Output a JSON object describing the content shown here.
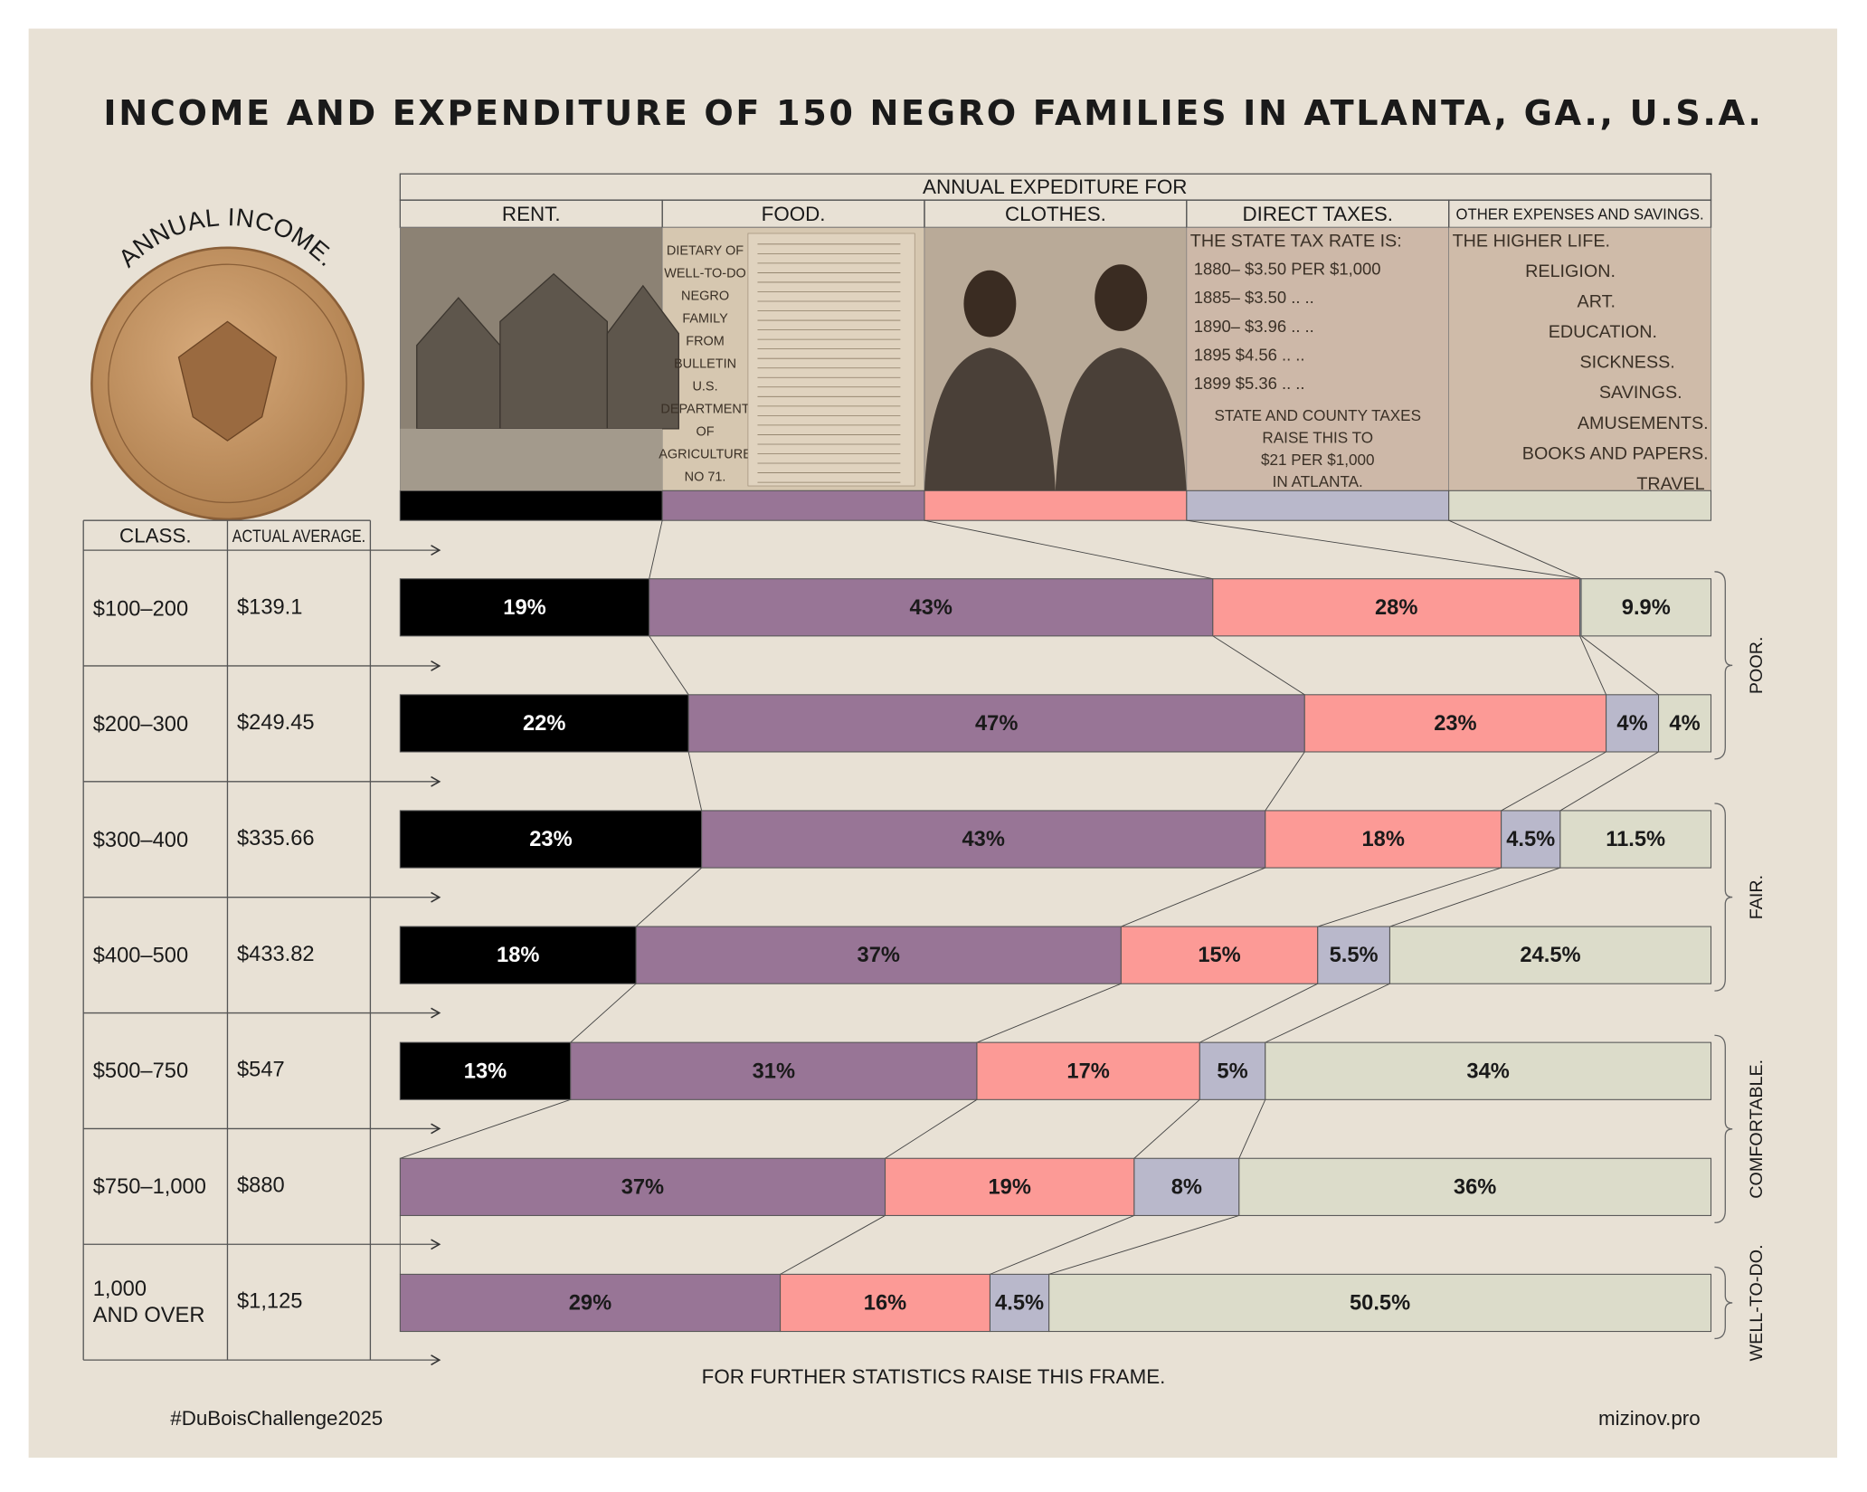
{
  "chart_data": {
    "type": "stacked-bar",
    "title": "INCOME AND EXPENDITURE OF 150 NEGRO FAMILIES IN ATLANTA, GA., U.S.A.",
    "income_label": "ANNUAL INCOME.",
    "expenditure_label": "ANNUAL EXPEDITURE FOR",
    "table_headers": [
      "CLASS.",
      "ACTUAL AVERAGE."
    ],
    "categories": [
      "$100–200",
      "$200–300",
      "$300–400",
      "$400–500",
      "$500–750",
      "$750–1,000",
      "1,000\nAND OVER"
    ],
    "actual_average": [
      "$139.1",
      "$249.45",
      "$335.66",
      "$433.82",
      "$547",
      "$880",
      "$1,125"
    ],
    "groups": [
      "POOR.",
      "POOR.",
      "FAIR.",
      "FAIR.",
      "COMFORTABLE.",
      "COMFORTABLE.",
      "WELL-TO-DO."
    ],
    "xlim": [
      0,
      100
    ],
    "series": [
      {
        "name": "RENT.",
        "color": "#000000",
        "values": [
          19,
          22,
          23,
          18,
          13,
          null,
          null
        ],
        "value_labels": [
          "19%",
          "22%",
          "23%",
          "18%",
          "13%",
          null,
          null
        ]
      },
      {
        "name": "FOOD.",
        "color": "#987596",
        "values": [
          43,
          47,
          43,
          37,
          31,
          37,
          29
        ],
        "value_labels": [
          "43%",
          "47%",
          "43%",
          "37%",
          "31%",
          "37%",
          "29%"
        ]
      },
      {
        "name": "CLOTHES.",
        "color": "#fc9a96",
        "values": [
          28,
          23,
          18,
          15,
          17,
          19,
          16
        ],
        "value_labels": [
          "28%",
          "23%",
          "18%",
          "15%",
          "17%",
          "19%",
          "16%"
        ]
      },
      {
        "name": "DIRECT TAXES.",
        "color": "#b9b8cb",
        "values": [
          0.1,
          4,
          4.5,
          5.5,
          5,
          8,
          4.5
        ],
        "value_labels": [
          null,
          "4%",
          "4.5%",
          "5.5%",
          "5%",
          "8%",
          "4.5%"
        ]
      },
      {
        "name": "OTHER EXPENSES AND SAVINGS.",
        "color": "#dcdcca",
        "values": [
          9.9,
          4,
          11.5,
          24.5,
          34,
          36,
          50.5
        ],
        "value_labels": [
          "9.9%",
          "4%",
          "11.5%",
          "24.5%",
          "34%",
          "36%",
          "50.5%"
        ]
      }
    ],
    "food_panel": [
      "DIETARY OF",
      "WELL-TO-DO",
      "NEGRO",
      "FAMILY",
      "FROM",
      "BULLETIN",
      "U.S.",
      "DEPARTMENT",
      "OF",
      "AGRICULTURE",
      "NO 71."
    ],
    "tax_panel": [
      "THE STATE TAX RATE IS:",
      "1880– $3.50  PER  $1,000",
      "1885– $3.50    ..        ..",
      "1890– $3.96    ..        ..",
      "1895   $4.56    ..        ..",
      "1899   $5.36    ..        ..",
      "STATE AND COUNTY TAXES",
      "RAISE THIS TO",
      "$21 PER $1,000",
      "IN ATLANTA."
    ],
    "other_panel": [
      "THE HIGHER LIFE.",
      "RELIGION.",
      "ART.",
      "EDUCATION.",
      "SICKNESS.",
      "SAVINGS.",
      "AMUSEMENTS.",
      "BOOKS AND PAPERS.",
      "TRAVEL"
    ],
    "footer_note": "FOR FURTHER STATISTICS RAISE THIS FRAME.",
    "hashtag": "#DuBoisChallenge2025",
    "credit": "mizinov.pro"
  }
}
